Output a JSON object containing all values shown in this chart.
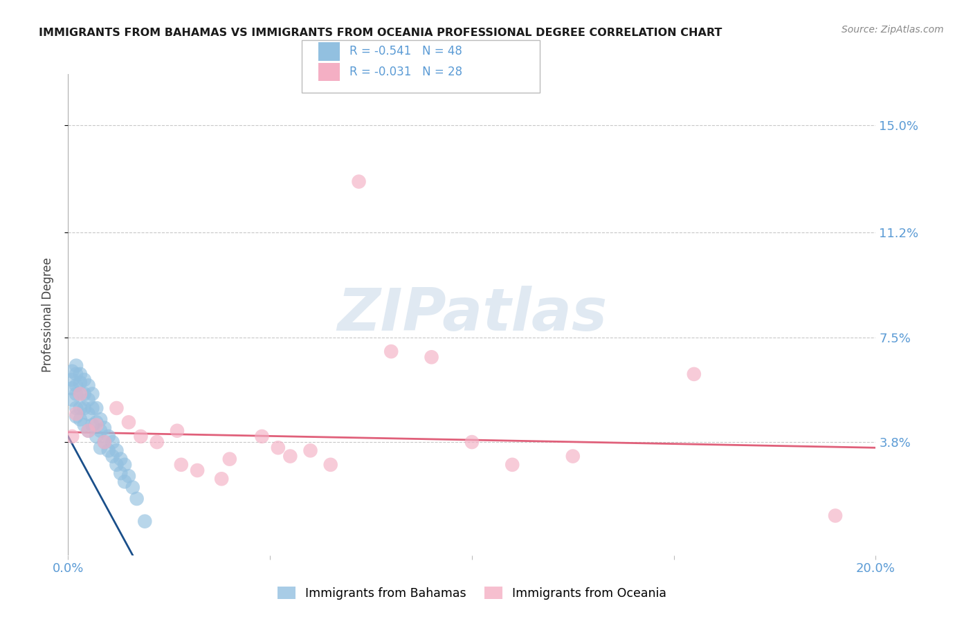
{
  "title": "IMMIGRANTS FROM BAHAMAS VS IMMIGRANTS FROM OCEANIA PROFESSIONAL DEGREE CORRELATION CHART",
  "source": "Source: ZipAtlas.com",
  "tick_color": "#5b9bd5",
  "ylabel": "Professional Degree",
  "xlim": [
    0.0,
    0.2
  ],
  "ylim": [
    -0.002,
    0.168
  ],
  "ytick_vals": [
    0.038,
    0.075,
    0.112,
    0.15
  ],
  "ytick_labels": [
    "3.8%",
    "7.5%",
    "11.2%",
    "15.0%"
  ],
  "grid_color": "#c8c8c8",
  "watermark_text": "ZIPatlas",
  "legend_r1": "-0.541",
  "legend_n1": "48",
  "legend_r2": "-0.031",
  "legend_n2": "28",
  "blue_color": "#92c0e0",
  "pink_color": "#f4afc4",
  "line_blue_color": "#1a4f8a",
  "line_pink_color": "#e0607a",
  "blue_line_x": [
    0.0,
    0.016
  ],
  "blue_line_y": [
    0.04,
    -0.002
  ],
  "pink_line_x": [
    0.0,
    0.2
  ],
  "pink_line_y": [
    0.0415,
    0.036
  ],
  "bahamas_x": [
    0.001,
    0.001,
    0.001,
    0.001,
    0.002,
    0.002,
    0.002,
    0.002,
    0.002,
    0.002,
    0.003,
    0.003,
    0.003,
    0.003,
    0.003,
    0.004,
    0.004,
    0.004,
    0.004,
    0.005,
    0.005,
    0.005,
    0.005,
    0.006,
    0.006,
    0.006,
    0.007,
    0.007,
    0.007,
    0.008,
    0.008,
    0.008,
    0.009,
    0.009,
    0.01,
    0.01,
    0.011,
    0.011,
    0.012,
    0.012,
    0.013,
    0.013,
    0.014,
    0.014,
    0.015,
    0.016,
    0.017,
    0.019
  ],
  "bahamas_y": [
    0.063,
    0.06,
    0.057,
    0.053,
    0.065,
    0.062,
    0.058,
    0.055,
    0.05,
    0.047,
    0.062,
    0.059,
    0.055,
    0.05,
    0.046,
    0.06,
    0.055,
    0.05,
    0.044,
    0.058,
    0.053,
    0.048,
    0.042,
    0.055,
    0.05,
    0.044,
    0.05,
    0.045,
    0.04,
    0.046,
    0.042,
    0.036,
    0.043,
    0.038,
    0.04,
    0.035,
    0.038,
    0.033,
    0.035,
    0.03,
    0.032,
    0.027,
    0.03,
    0.024,
    0.026,
    0.022,
    0.018,
    0.01
  ],
  "oceania_x": [
    0.001,
    0.002,
    0.003,
    0.005,
    0.007,
    0.009,
    0.012,
    0.015,
    0.018,
    0.022,
    0.027,
    0.032,
    0.04,
    0.048,
    0.055,
    0.06,
    0.065,
    0.072,
    0.08,
    0.09,
    0.1,
    0.11,
    0.125,
    0.155,
    0.19,
    0.052,
    0.038,
    0.028
  ],
  "oceania_y": [
    0.04,
    0.048,
    0.055,
    0.042,
    0.044,
    0.038,
    0.05,
    0.045,
    0.04,
    0.038,
    0.042,
    0.028,
    0.032,
    0.04,
    0.033,
    0.035,
    0.03,
    0.13,
    0.07,
    0.068,
    0.038,
    0.03,
    0.033,
    0.062,
    0.012,
    0.036,
    0.025,
    0.03
  ]
}
